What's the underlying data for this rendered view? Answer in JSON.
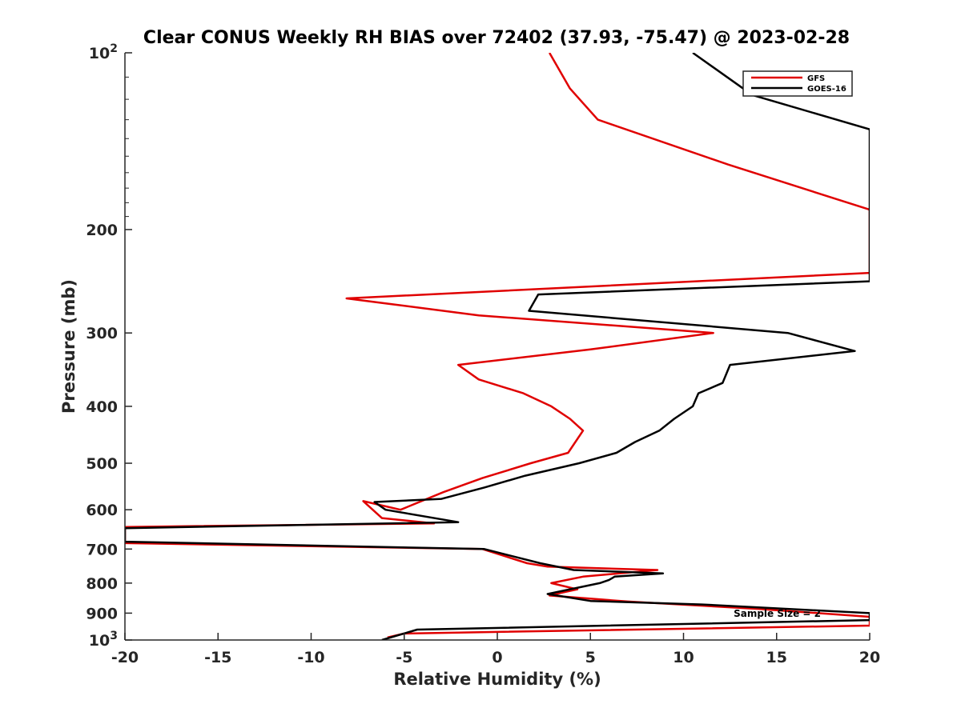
{
  "chart_data": {
    "type": "line",
    "title": "Clear CONUS Weekly RH BIAS over 72402 (37.93, -75.47) @ 2023-02-28",
    "xlabel": "Relative Humidity (%)",
    "ylabel": "Pressure (mb)",
    "xlim": [
      -20,
      20
    ],
    "ylim": [
      100,
      1000
    ],
    "y_scale": "log",
    "y_reversed": true,
    "grid": false,
    "legend_position": "top-right",
    "x_ticks": [
      "-20",
      "-15",
      "-10",
      "-5",
      "0",
      "5",
      "10",
      "15",
      "20"
    ],
    "y_tick_labels": [
      {
        "value": 100,
        "base": "10",
        "exp": "2"
      },
      {
        "value": 200,
        "base": "200",
        "exp": ""
      },
      {
        "value": 300,
        "base": "300",
        "exp": ""
      },
      {
        "value": 400,
        "base": "400",
        "exp": ""
      },
      {
        "value": 500,
        "base": "500",
        "exp": ""
      },
      {
        "value": 600,
        "base": "600",
        "exp": ""
      },
      {
        "value": 700,
        "base": "700",
        "exp": ""
      },
      {
        "value": 800,
        "base": "800",
        "exp": ""
      },
      {
        "value": 900,
        "base": "900",
        "exp": ""
      },
      {
        "value": 1000,
        "base": "10",
        "exp": "3"
      }
    ],
    "annotation": "Sample Size = 2",
    "series": [
      {
        "name": "GFS",
        "color": "#e00000",
        "points": [
          [
            2.8,
            100
          ],
          [
            3.9,
            115
          ],
          [
            5.4,
            130
          ],
          [
            12.4,
            155
          ],
          [
            20.0,
            185
          ],
          [
            20.0,
            237
          ],
          [
            -8.1,
            262
          ],
          [
            -1.0,
            280
          ],
          [
            11.6,
            300
          ],
          [
            5.0,
            320
          ],
          [
            -2.1,
            340
          ],
          [
            -1.0,
            360
          ],
          [
            1.4,
            380
          ],
          [
            2.9,
            400
          ],
          [
            3.9,
            420
          ],
          [
            4.6,
            440
          ],
          [
            3.8,
            480
          ],
          [
            1.8,
            500
          ],
          [
            -0.8,
            530
          ],
          [
            -2.9,
            560
          ],
          [
            -5.2,
            600
          ],
          [
            -7.2,
            580
          ],
          [
            -6.2,
            620
          ],
          [
            -3.4,
            633
          ],
          [
            -20.0,
            642
          ],
          [
            -20.0,
            684
          ],
          [
            -0.8,
            700
          ],
          [
            1.6,
            740
          ],
          [
            2.7,
            750
          ],
          [
            8.6,
            760
          ],
          [
            4.6,
            780
          ],
          [
            2.9,
            800
          ],
          [
            4.3,
            820
          ],
          [
            3.5,
            830
          ],
          [
            2.8,
            840
          ],
          [
            7.0,
            860
          ],
          [
            14.0,
            885
          ],
          [
            20.0,
            913
          ],
          [
            20.0,
            945
          ],
          [
            -5.0,
            975
          ],
          [
            -5.9,
            990
          ]
        ]
      },
      {
        "name": "GOES-16",
        "color": "#000000",
        "points": [
          [
            10.5,
            100
          ],
          [
            13.7,
            118
          ],
          [
            20.0,
            135
          ],
          [
            20.0,
            245
          ],
          [
            2.2,
            258
          ],
          [
            1.7,
            275
          ],
          [
            15.6,
            300
          ],
          [
            19.2,
            322
          ],
          [
            12.5,
            340
          ],
          [
            12.1,
            365
          ],
          [
            10.8,
            380
          ],
          [
            10.5,
            400
          ],
          [
            9.5,
            420
          ],
          [
            8.7,
            440
          ],
          [
            7.4,
            460
          ],
          [
            6.4,
            480
          ],
          [
            4.4,
            500
          ],
          [
            1.5,
            525
          ],
          [
            -0.7,
            550
          ],
          [
            -3.0,
            575
          ],
          [
            -6.6,
            582
          ],
          [
            -6.0,
            600
          ],
          [
            -2.1,
            630
          ],
          [
            -20.0,
            645
          ],
          [
            -20.0,
            680
          ],
          [
            -0.7,
            700
          ],
          [
            2.3,
            740
          ],
          [
            4.1,
            760
          ],
          [
            8.9,
            770
          ],
          [
            6.3,
            780
          ],
          [
            6.0,
            790
          ],
          [
            5.5,
            800
          ],
          [
            2.7,
            835
          ],
          [
            5.0,
            858
          ],
          [
            11.0,
            870
          ],
          [
            20.0,
            900
          ],
          [
            20.0,
            925
          ],
          [
            -4.3,
            960
          ],
          [
            -6.2,
            1000
          ]
        ]
      }
    ]
  }
}
